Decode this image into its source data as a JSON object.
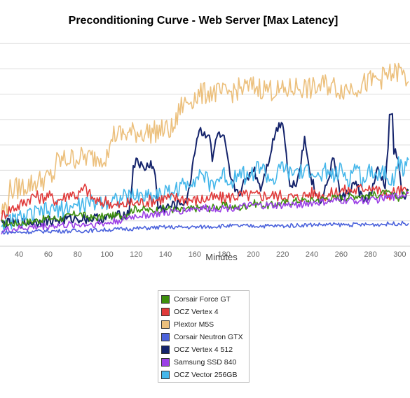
{
  "chart_data": {
    "type": "line",
    "title": "Preconditioning Curve - Web Server [Max Latency]",
    "xlabel": "Minutes",
    "ylabel": "",
    "xlim": [
      27,
      307
    ],
    "ylim": [
      0,
      8.2
    ],
    "x_ticks": [
      40,
      60,
      80,
      100,
      120,
      140,
      160,
      180,
      200,
      220,
      240,
      260,
      280,
      300
    ],
    "grid": true,
    "legend_position": "bottom-center",
    "series": [
      {
        "name": "Corsair Force GT",
        "color": "#3d8f0d",
        "x": [
          28,
          40,
          50,
          60,
          70,
          80,
          90,
          100,
          110,
          120,
          130,
          140,
          150,
          160,
          170,
          180,
          190,
          200,
          210,
          220,
          230,
          240,
          250,
          260,
          270,
          280,
          290,
          300,
          306
        ],
        "y": [
          0.9,
          0.9,
          1.0,
          1.1,
          1.1,
          1.3,
          1.1,
          1.2,
          1.2,
          1.5,
          1.4,
          1.5,
          1.4,
          1.5,
          1.5,
          1.6,
          1.5,
          1.7,
          1.6,
          1.7,
          1.8,
          1.8,
          1.9,
          1.9,
          2.0,
          2.0,
          2.1,
          1.9,
          2.2
        ]
      },
      {
        "name": "OCZ Vertex 4",
        "color": "#e03a3a",
        "x": [
          28,
          35,
          40,
          45,
          50,
          55,
          60,
          65,
          70,
          75,
          80,
          85,
          90,
          95,
          100,
          105,
          110,
          115,
          120,
          130,
          140,
          150,
          160,
          170,
          180,
          190,
          200,
          210,
          220,
          230,
          240,
          250,
          260,
          270,
          280,
          290,
          300,
          306
        ],
        "y": [
          1.2,
          1.5,
          1.6,
          1.8,
          2.0,
          1.9,
          2.0,
          1.8,
          1.9,
          2.1,
          2.0,
          2.3,
          1.9,
          1.7,
          1.8,
          1.6,
          1.6,
          1.7,
          1.7,
          1.8,
          1.9,
          1.9,
          1.8,
          1.9,
          1.9,
          2.0,
          2.0,
          2.0,
          2.0,
          1.9,
          2.1,
          2.0,
          2.2,
          2.2,
          2.4,
          2.0,
          2.2,
          2.1
        ]
      },
      {
        "name": "Plextor M5S",
        "color": "#ecc07d",
        "x": [
          28,
          32,
          33,
          40,
          50,
          60,
          64,
          65,
          70,
          80,
          90,
          100,
          102,
          103,
          110,
          120,
          130,
          140,
          145,
          148,
          150,
          160,
          170,
          180,
          190,
          200,
          210,
          220,
          230,
          240,
          250,
          260,
          270,
          280,
          290,
          300,
          306
        ],
        "y": [
          1.4,
          1.6,
          2.2,
          2.3,
          2.5,
          2.7,
          2.8,
          3.3,
          3.4,
          3.5,
          3.5,
          3.6,
          3.7,
          4.4,
          4.4,
          4.5,
          4.5,
          4.6,
          4.6,
          5.0,
          5.5,
          5.9,
          6.1,
          6.0,
          6.2,
          6.3,
          6.2,
          6.1,
          6.3,
          6.2,
          6.4,
          6.2,
          6.3,
          6.5,
          6.7,
          6.9,
          6.5
        ]
      },
      {
        "name": "Corsair Neutron GTX",
        "color": "#4c63dc",
        "x": [
          28,
          40,
          60,
          80,
          100,
          120,
          140,
          160,
          180,
          200,
          220,
          240,
          260,
          280,
          300,
          306
        ],
        "y": [
          0.55,
          0.55,
          0.6,
          0.6,
          0.65,
          0.7,
          0.75,
          0.75,
          0.8,
          0.8,
          0.8,
          0.85,
          0.85,
          0.85,
          0.9,
          0.9
        ]
      },
      {
        "name": "OCZ Vertex 4 512",
        "color": "#14236b",
        "x": [
          28,
          40,
          60,
          80,
          100,
          115,
          118,
          120,
          125,
          130,
          133,
          135,
          140,
          150,
          155,
          160,
          163,
          165,
          170,
          172,
          175,
          180,
          185,
          190,
          195,
          200,
          205,
          210,
          215,
          220,
          225,
          230,
          235,
          240,
          245,
          250,
          255,
          260,
          265,
          270,
          275,
          280,
          285,
          290,
          292,
          293,
          295,
          296,
          298,
          300,
          302,
          306
        ],
        "y": [
          0.9,
          0.9,
          1.0,
          1.1,
          1.1,
          1.3,
          3.0,
          3.5,
          3.0,
          3.3,
          2.8,
          1.5,
          1.5,
          1.7,
          1.8,
          3.8,
          4.6,
          4.5,
          4.4,
          3.3,
          4.4,
          4.2,
          2.5,
          2.1,
          2.6,
          3.1,
          2.3,
          3.3,
          4.5,
          5.0,
          2.3,
          2.6,
          4.2,
          2.6,
          1.7,
          2.4,
          3.5,
          1.8,
          2.2,
          2.5,
          1.8,
          2.0,
          3.0,
          2.4,
          3.9,
          5.0,
          5.3,
          3.8,
          3.5,
          3.0,
          1.8,
          2.2
        ]
      },
      {
        "name": "Samsung SSD 840",
        "color": "#9b3fe6",
        "x": [
          28,
          40,
          60,
          80,
          100,
          120,
          140,
          160,
          180,
          200,
          220,
          240,
          260,
          280,
          300,
          306
        ],
        "y": [
          0.6,
          0.7,
          0.8,
          0.85,
          0.9,
          1.2,
          1.3,
          1.5,
          1.5,
          1.6,
          1.6,
          1.7,
          1.8,
          1.8,
          2.0,
          2.1
        ]
      },
      {
        "name": "OCZ Vector 256GB",
        "color": "#46b7ea",
        "x": [
          28,
          40,
          60,
          80,
          100,
          120,
          130,
          140,
          150,
          160,
          165,
          170,
          175,
          180,
          185,
          190,
          195,
          200,
          205,
          210,
          215,
          220,
          225,
          230,
          235,
          240,
          245,
          250,
          255,
          260,
          265,
          270,
          275,
          280,
          285,
          290,
          295,
          300,
          303,
          306
        ],
        "y": [
          0.9,
          1.1,
          1.4,
          1.6,
          1.8,
          2.0,
          2.0,
          2.1,
          2.3,
          2.7,
          2.9,
          2.4,
          2.6,
          2.8,
          2.5,
          3.1,
          2.7,
          2.9,
          3.2,
          2.7,
          2.6,
          3.2,
          2.8,
          3.0,
          2.8,
          3.1,
          2.6,
          3.0,
          2.7,
          3.0,
          2.6,
          3.2,
          2.5,
          3.1,
          2.8,
          3.0,
          2.6,
          3.3,
          2.9,
          3.4
        ]
      }
    ]
  }
}
